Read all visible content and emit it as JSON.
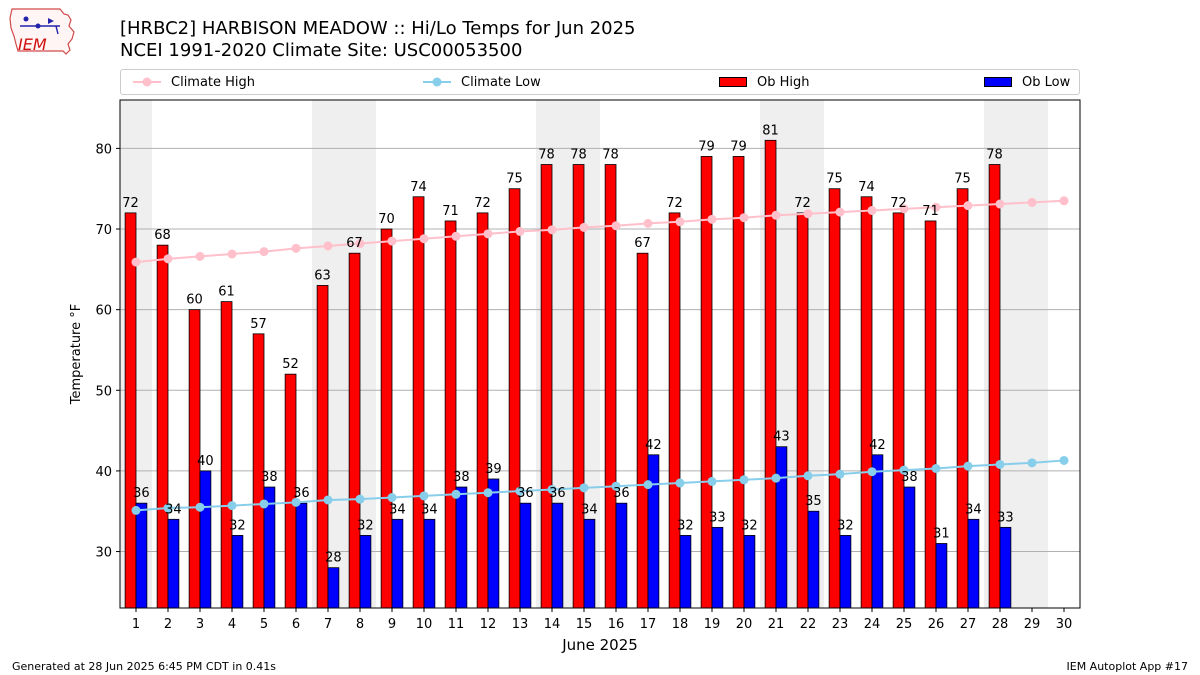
{
  "logo": {
    "text": "IEM"
  },
  "title": {
    "line1": "[HRBC2] HARBISON MEADOW :: Hi/Lo Temps for Jun 2025",
    "line2": "NCEI 1991-2020 Climate Site: USC00053500"
  },
  "legend": {
    "climate_high": "Climate High",
    "climate_low": "Climate Low",
    "ob_high": "Ob High",
    "ob_low": "Ob Low"
  },
  "footer": {
    "left": "Generated at 28 Jun 2025 6:45 PM CDT in 0.41s",
    "right": "IEM Autoplot App #17"
  },
  "colors": {
    "ob_high": "#ff0000",
    "ob_low": "#0000ff",
    "climate_high": "#ffc0cb",
    "climate_low": "#87ceeb",
    "weekend_band": "#efefef",
    "grid": "#b0b0b0"
  },
  "chart_data": {
    "type": "bar",
    "xlabel": "June 2025",
    "ylabel": "Temperature °F",
    "ylim": [
      23,
      86
    ],
    "yticks": [
      30,
      40,
      50,
      60,
      70,
      80
    ],
    "grid": "horizontal",
    "legend_placement": "top",
    "days": [
      1,
      2,
      3,
      4,
      5,
      6,
      7,
      8,
      9,
      10,
      11,
      12,
      13,
      14,
      15,
      16,
      17,
      18,
      19,
      20,
      21,
      22,
      23,
      24,
      25,
      26,
      27,
      28,
      29,
      30
    ],
    "weekend_days": [
      1,
      7,
      8,
      14,
      15,
      21,
      22,
      28,
      29
    ],
    "series": [
      {
        "name": "Ob High",
        "kind": "bar",
        "values": [
          72,
          68,
          60,
          61,
          57,
          52,
          63,
          67,
          70,
          74,
          71,
          72,
          75,
          78,
          78,
          78,
          67,
          72,
          79,
          79,
          81,
          72,
          75,
          74,
          72,
          71,
          75,
          78,
          null,
          null
        ]
      },
      {
        "name": "Ob Low",
        "kind": "bar",
        "values": [
          36,
          34,
          40,
          32,
          38,
          36,
          28,
          32,
          34,
          34,
          38,
          39,
          36,
          36,
          34,
          36,
          42,
          32,
          33,
          32,
          43,
          35,
          32,
          42,
          38,
          31,
          34,
          33,
          null,
          null
        ]
      },
      {
        "name": "Climate High",
        "kind": "line",
        "values": [
          65.9,
          66.3,
          66.6,
          66.9,
          67.2,
          67.6,
          67.9,
          68.2,
          68.5,
          68.8,
          69.1,
          69.4,
          69.7,
          69.9,
          70.2,
          70.4,
          70.7,
          70.9,
          71.2,
          71.4,
          71.7,
          71.9,
          72.1,
          72.3,
          72.5,
          72.7,
          72.9,
          73.1,
          73.3,
          73.5
        ]
      },
      {
        "name": "Climate Low",
        "kind": "line",
        "values": [
          35.1,
          35.4,
          35.5,
          35.7,
          35.9,
          36.1,
          36.4,
          36.5,
          36.7,
          36.9,
          37.1,
          37.3,
          37.5,
          37.7,
          37.9,
          38.1,
          38.3,
          38.5,
          38.7,
          38.9,
          39.1,
          39.4,
          39.6,
          39.9,
          40.1,
          40.3,
          40.6,
          40.8,
          41.0,
          41.3
        ]
      }
    ]
  }
}
